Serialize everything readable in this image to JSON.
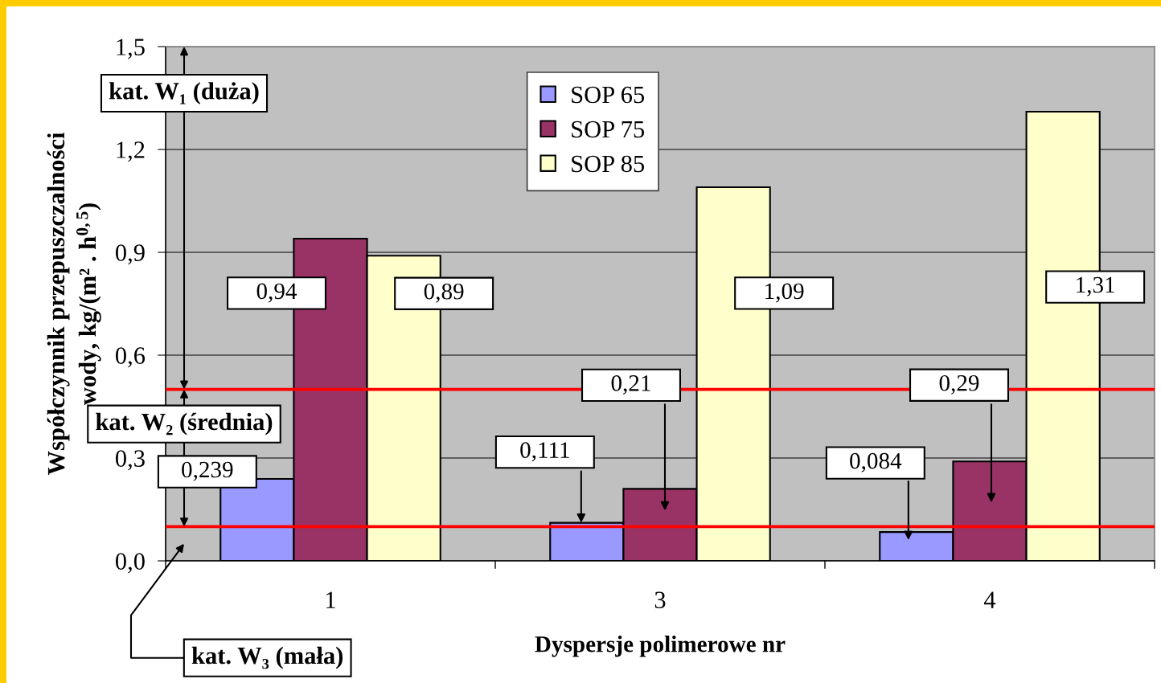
{
  "chart_data": {
    "type": "bar",
    "xlabel": "Dyspersje polimerowe nr",
    "ylabel": "Współczynnik przepuszczalności\nwody, kg/(m² . h$^{0,5}$)",
    "categories": [
      "1",
      "3",
      "4"
    ],
    "series": [
      {
        "name": "SOP 65",
        "color": "#9999ff",
        "values": [
          0.239,
          0.111,
          0.084
        ],
        "value_labels": [
          "0,239",
          "0,111",
          "0,084"
        ]
      },
      {
        "name": "SOP 75",
        "color": "#993366",
        "values": [
          0.94,
          0.21,
          0.29
        ],
        "value_labels": [
          "0,94",
          "0,21",
          "0,29"
        ]
      },
      {
        "name": "SOP 85",
        "color": "#ffffcc",
        "values": [
          0.89,
          1.09,
          1.31
        ],
        "value_labels": [
          "0,89",
          "1,09",
          "1,31"
        ]
      }
    ],
    "ylim": [
      0,
      1.5
    ],
    "yticks": [
      {
        "value": 0,
        "label": "0,0"
      },
      {
        "value": 0.3,
        "label": "0,3"
      },
      {
        "value": 0.6,
        "label": "0,6"
      },
      {
        "value": 0.9,
        "label": "0,9"
      },
      {
        "value": 1.2,
        "label": "1,2"
      },
      {
        "value": 1.5,
        "label": "1,5"
      }
    ],
    "ref_lines": [
      {
        "axis": "y",
        "value": 0.1,
        "color": "#ff0000"
      },
      {
        "axis": "y",
        "value": 0.5,
        "color": "#ff0000"
      }
    ],
    "annotations": [
      {
        "text": "kat. W₁ (duża)",
        "y": 0.5
      },
      {
        "text": "kat. W₂ (średnia)",
        "y": 0.1
      },
      "kat. W₃ (mała)"
    ],
    "grid": "y",
    "legend": "top"
  }
}
